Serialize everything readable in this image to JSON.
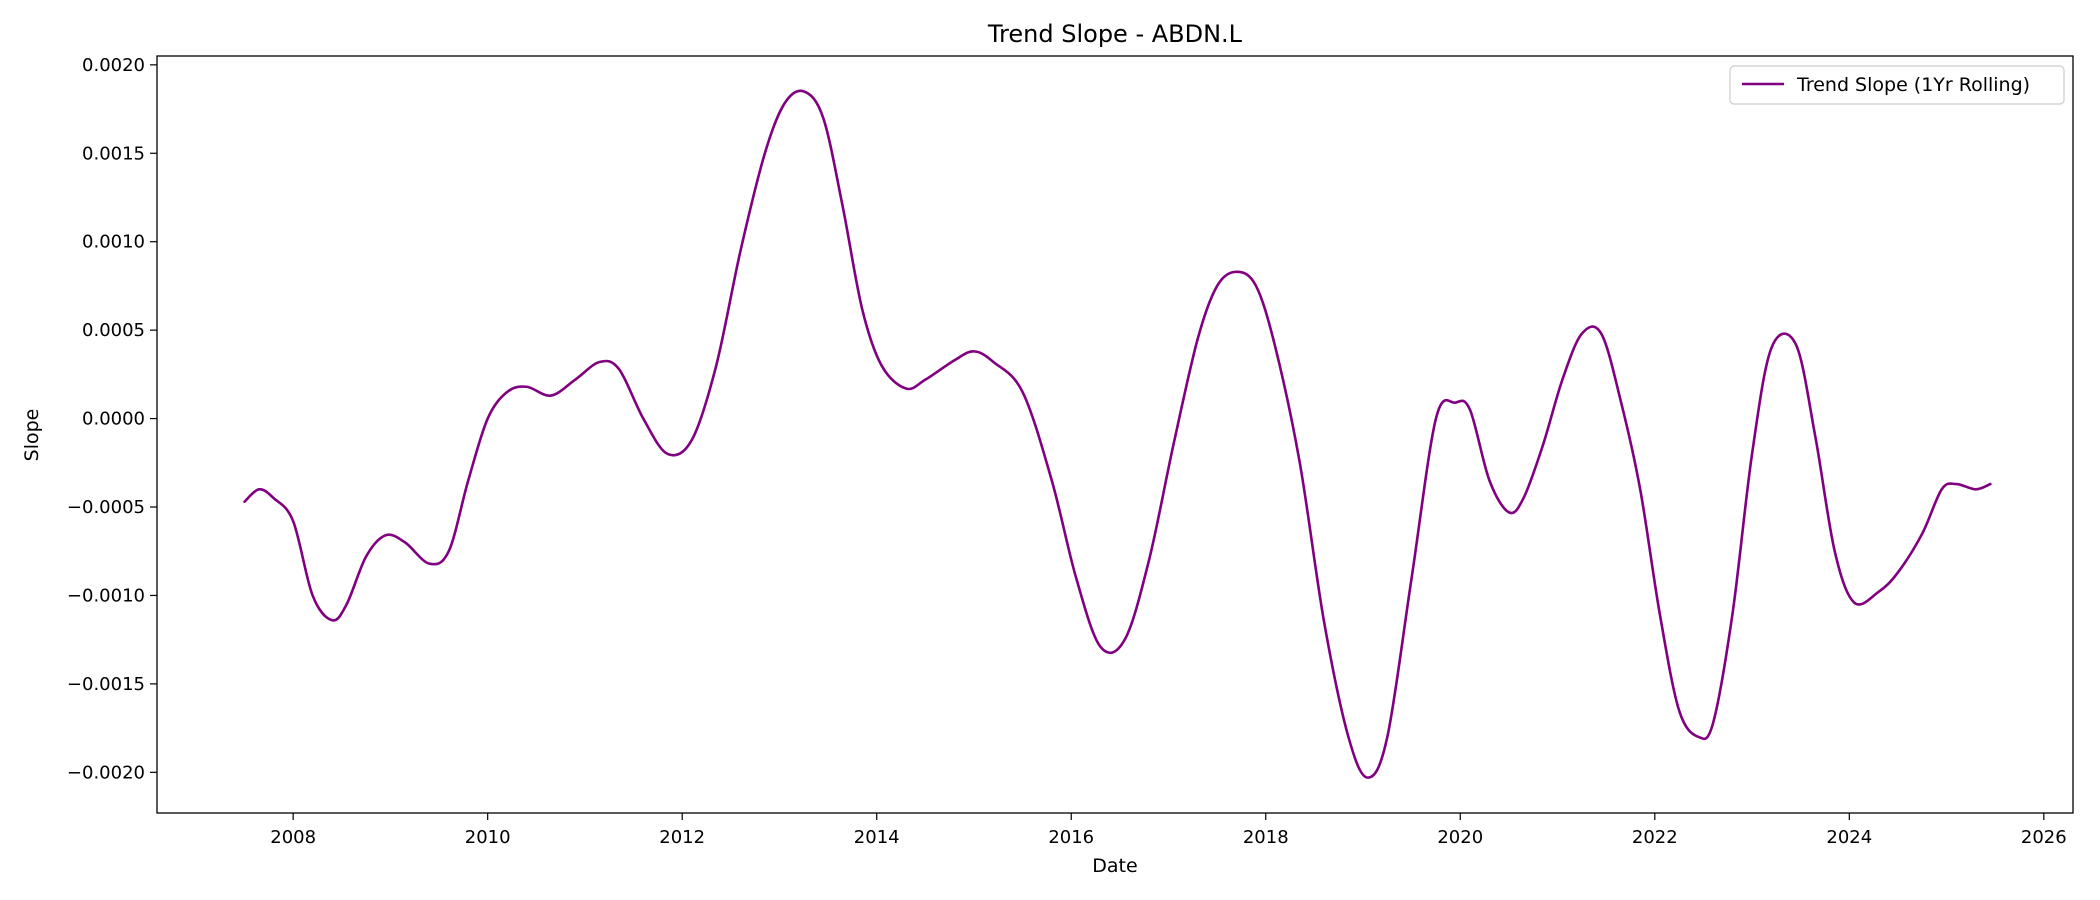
{
  "chart_data": {
    "type": "line",
    "title": "Trend Slope - ABDN.L",
    "xlabel": "Date",
    "ylabel": "Slope",
    "xlim": [
      2006.6,
      2026.3
    ],
    "ylim": [
      -0.00223,
      0.00205
    ],
    "x_ticks": [
      2008,
      2010,
      2012,
      2014,
      2016,
      2018,
      2020,
      2022,
      2024,
      2026
    ],
    "x_tick_labels": [
      "2008",
      "2010",
      "2012",
      "2014",
      "2016",
      "2018",
      "2020",
      "2022",
      "2024",
      "2026"
    ],
    "y_ticks": [
      -0.002,
      -0.0015,
      -0.001,
      -0.0005,
      0.0,
      0.0005,
      0.001,
      0.0015,
      0.002
    ],
    "y_tick_labels": [
      "−0.0020",
      "−0.0015",
      "−0.0010",
      "−0.0005",
      "0.0000",
      "0.0005",
      "0.0010",
      "0.0015",
      "0.0020"
    ],
    "grid": false,
    "legend_position": "top-right",
    "series": [
      {
        "name": "Trend Slope (1Yr Rolling)",
        "color": "#800080",
        "x": [
          2007.5,
          2007.65,
          2007.8,
          2008.0,
          2008.2,
          2008.4,
          2008.55,
          2008.75,
          2008.95,
          2009.15,
          2009.4,
          2009.6,
          2009.8,
          2010.0,
          2010.2,
          2010.4,
          2010.65,
          2010.9,
          2011.15,
          2011.35,
          2011.6,
          2011.85,
          2012.1,
          2012.35,
          2012.6,
          2012.85,
          2013.05,
          2013.25,
          2013.45,
          2013.65,
          2013.85,
          2014.05,
          2014.3,
          2014.5,
          2014.8,
          2015.0,
          2015.2,
          2015.5,
          2015.8,
          2016.05,
          2016.3,
          2016.55,
          2016.8,
          2017.05,
          2017.3,
          2017.5,
          2017.7,
          2017.9,
          2018.1,
          2018.35,
          2018.6,
          2018.85,
          2019.05,
          2019.25,
          2019.5,
          2019.75,
          2019.95,
          2020.1,
          2020.3,
          2020.5,
          2020.65,
          2020.85,
          2021.05,
          2021.25,
          2021.45,
          2021.65,
          2021.85,
          2022.05,
          2022.25,
          2022.45,
          2022.6,
          2022.8,
          2023.0,
          2023.2,
          2023.45,
          2023.65,
          2023.85,
          2024.05,
          2024.3,
          2024.5,
          2024.75,
          2024.95,
          2025.1,
          2025.3,
          2025.45
        ],
        "y": [
          -0.00047,
          -0.0004,
          -0.00045,
          -0.00058,
          -0.001,
          -0.00114,
          -0.00105,
          -0.00078,
          -0.00066,
          -0.0007,
          -0.00082,
          -0.00075,
          -0.00035,
          0.0,
          0.00015,
          0.00018,
          0.00013,
          0.00022,
          0.00032,
          0.00028,
          0.0,
          -0.0002,
          -0.00012,
          0.0003,
          0.00095,
          0.0015,
          0.00178,
          0.00185,
          0.0017,
          0.0012,
          0.00062,
          0.0003,
          0.00017,
          0.00022,
          0.00033,
          0.00038,
          0.00032,
          0.00015,
          -0.00035,
          -0.0009,
          -0.00129,
          -0.00125,
          -0.0008,
          -0.00015,
          0.00045,
          0.00075,
          0.00083,
          0.00075,
          0.0004,
          -0.00025,
          -0.00115,
          -0.0018,
          -0.00203,
          -0.0018,
          -0.0009,
          0.0,
          9e-05,
          5e-05,
          -0.00035,
          -0.00053,
          -0.00045,
          -0.00015,
          0.00022,
          0.00048,
          0.00048,
          0.0001,
          -0.0004,
          -0.0011,
          -0.00165,
          -0.0018,
          -0.00172,
          -0.0011,
          -0.0002,
          0.0004,
          0.00042,
          -0.0001,
          -0.00075,
          -0.00104,
          -0.00098,
          -0.00087,
          -0.00065,
          -0.0004,
          -0.00037,
          -0.0004,
          -0.00037
        ]
      }
    ]
  }
}
